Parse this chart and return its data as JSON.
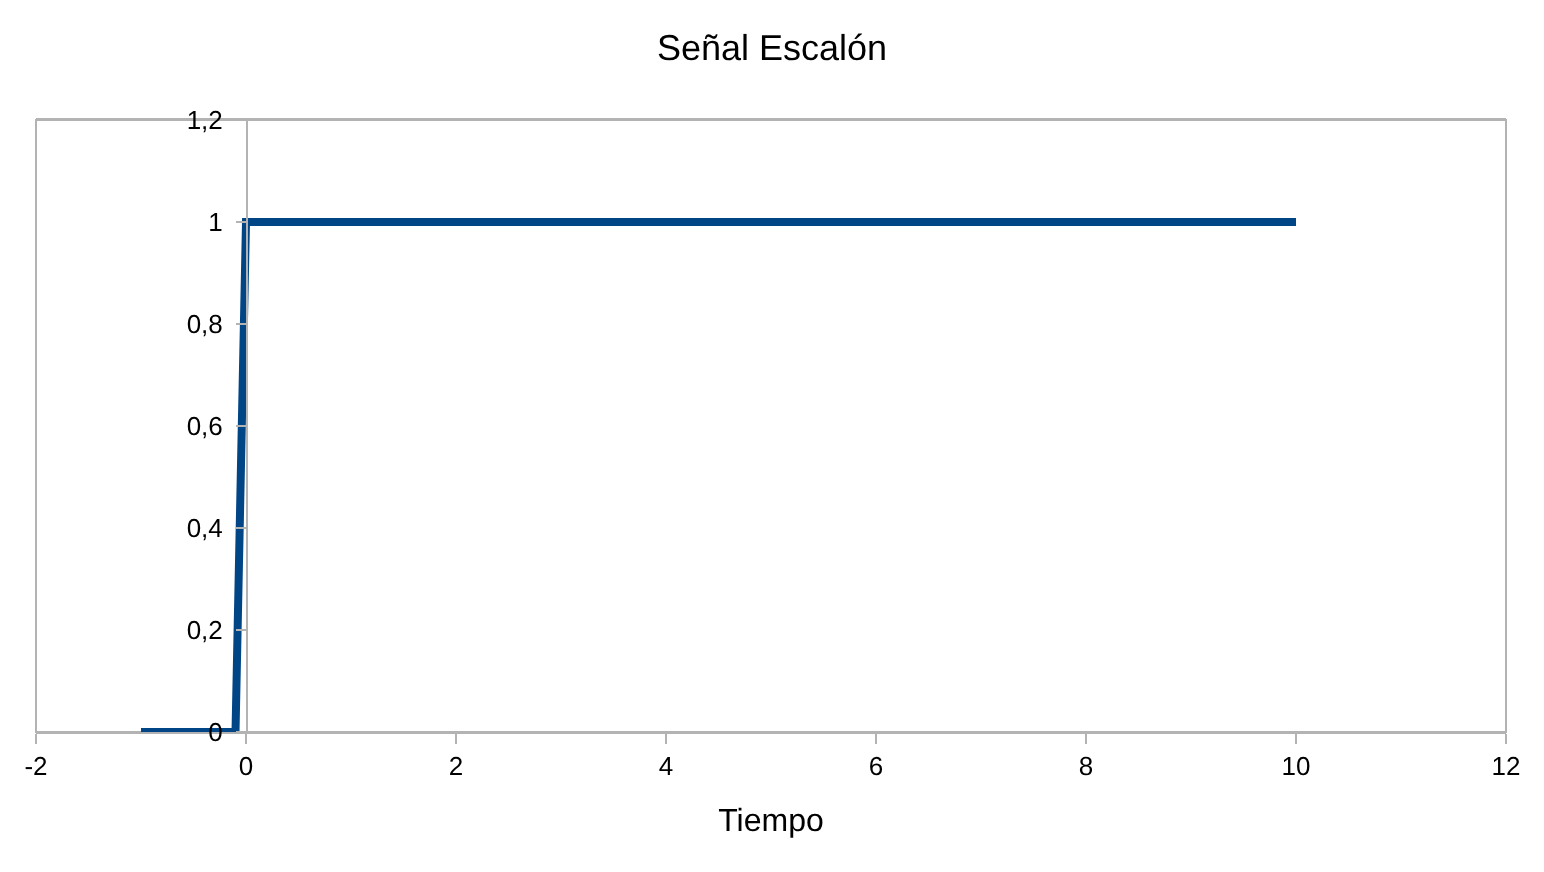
{
  "chart_data": {
    "type": "line",
    "title": "Señal Escalón",
    "xlabel": "Tiempo",
    "series": [
      {
        "color": "#004586",
        "x": [
          -1,
          -0.1,
          0,
          10
        ],
        "values": [
          0,
          0,
          1,
          1
        ]
      }
    ],
    "xlim": [
      -2,
      12
    ],
    "xticks": [
      -2,
      0,
      2,
      4,
      6,
      8,
      10,
      12
    ],
    "ylim": [
      0,
      1.2
    ],
    "yticks": [
      0,
      {
        "value": 0.2,
        "label": "0,2"
      },
      {
        "value": 0.4,
        "label": "0,4"
      },
      {
        "value": 0.6,
        "label": "0,6"
      },
      {
        "value": 0.8,
        "label": "0,8"
      },
      1,
      {
        "value": 1.2,
        "label": "1,2"
      }
    ],
    "grid": false,
    "marker": "none",
    "line_style": "solid"
  }
}
